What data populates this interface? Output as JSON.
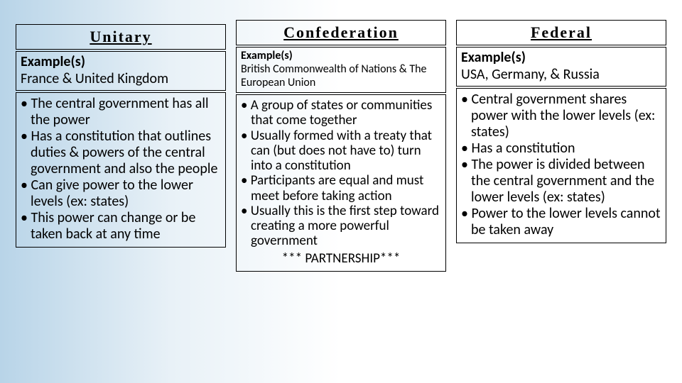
{
  "columns": [
    {
      "title": "Unitary",
      "example_label": "Example(s)",
      "example_text": "France & United Kingdom",
      "bullets": [
        "The central government has all the power",
        "Has a constitution that outlines duties & powers of the central government and also the people",
        "Can give power to the lower levels (ex: states)",
        "This power can change or be taken back at any time"
      ],
      "footnote": ""
    },
    {
      "title": "Confederation",
      "example_label": "Example(s)",
      "example_text": "British Commonwealth of Nations & The European Union",
      "bullets": [
        "A group of states or communities that come together",
        "Usually formed with a treaty that can (but does not have to) turn into a constitution",
        "Participants are equal and must meet before taking action",
        "Usually this is the first step toward creating a more powerful government"
      ],
      "footnote": "*** PARTNERSHIP***"
    },
    {
      "title": "Federal",
      "example_label": "Example(s)",
      "example_text": "USA, Germany, & Russia",
      "bullets": [
        "Central government shares power with the lower levels (ex: states)",
        "Has a constitution",
        "The power is divided between the central government and the lower levels (ex: states)",
        "Power to the lower levels cannot be taken away"
      ],
      "footnote": ""
    }
  ]
}
